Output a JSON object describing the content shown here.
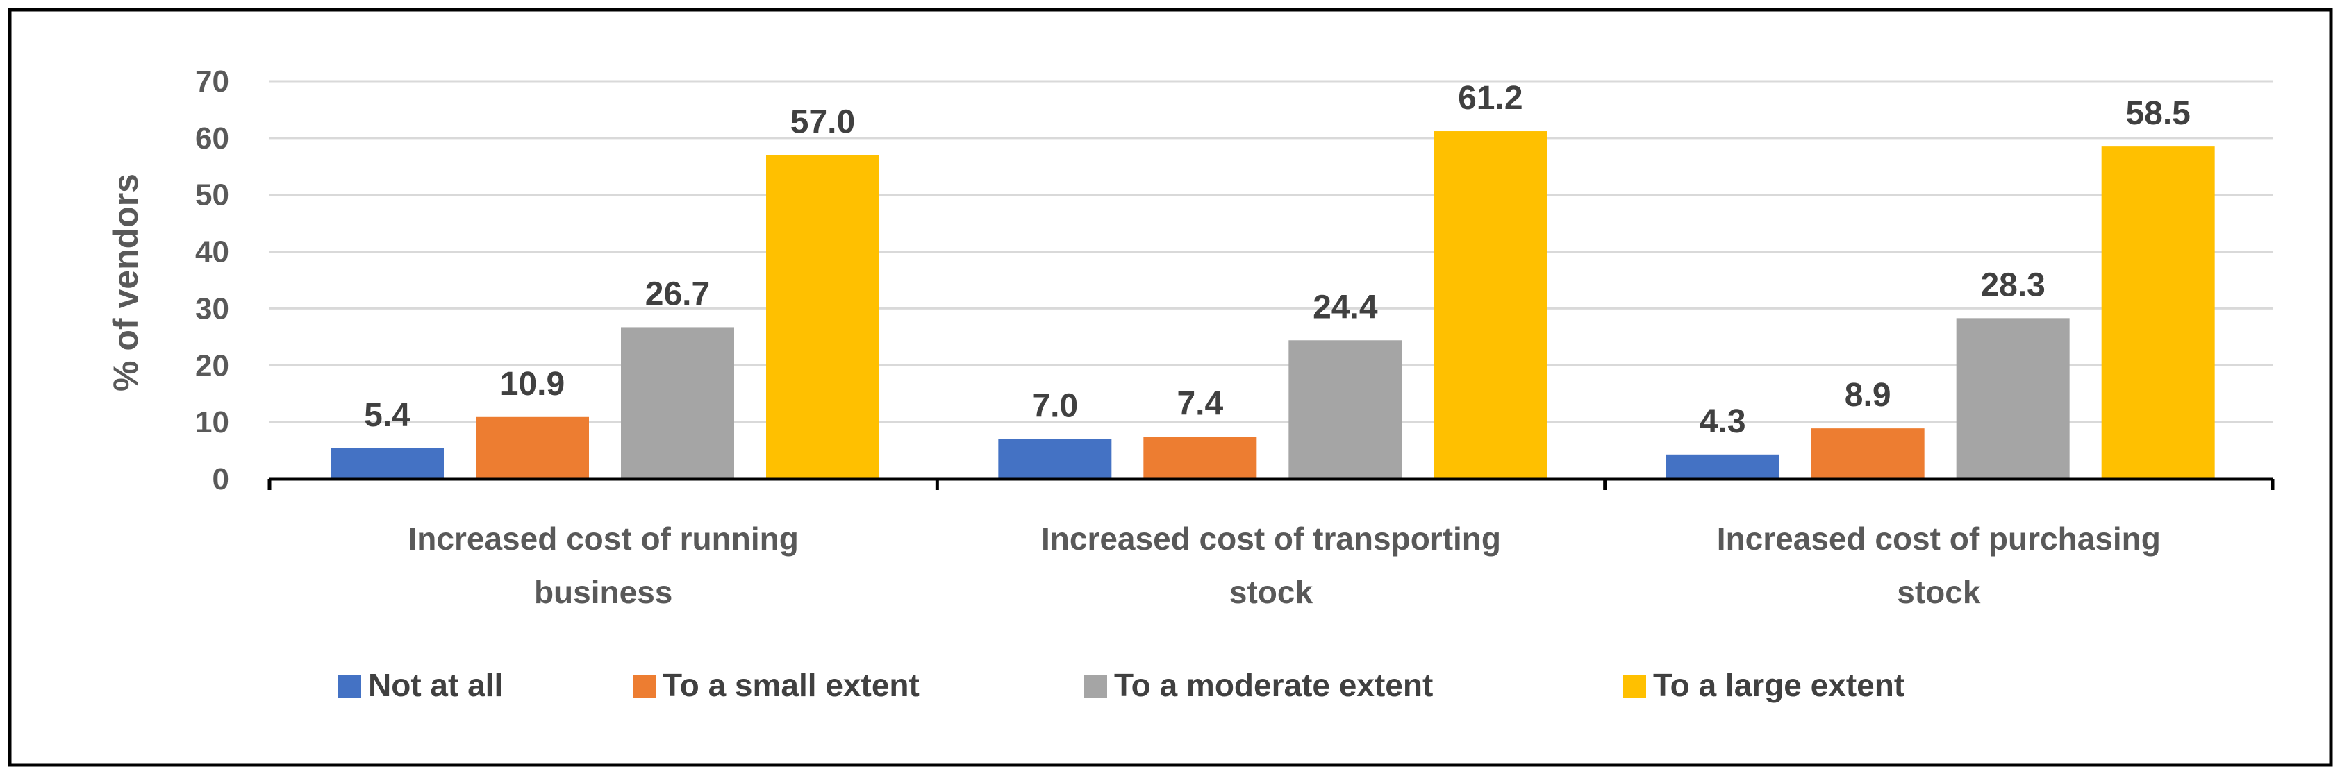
{
  "chart_data": {
    "type": "bar",
    "title": "",
    "xlabel": "",
    "ylabel": "% of vendors",
    "ylim": [
      0,
      70
    ],
    "yticks": [
      0,
      10,
      20,
      30,
      40,
      50,
      60,
      70
    ],
    "grid": true,
    "legend_position": "bottom",
    "categories": [
      [
        "Increased cost of running",
        "business"
      ],
      [
        "Increased cost of transporting",
        "stock"
      ],
      [
        "Increased cost of purchasing",
        "stock"
      ]
    ],
    "series": [
      {
        "name": "Not at all",
        "color": "#4472C4",
        "values": [
          5.4,
          7.0,
          4.3
        ],
        "labels": [
          "5.4",
          "7.0",
          "4.3"
        ]
      },
      {
        "name": "To a small extent",
        "color": "#ED7D31",
        "values": [
          10.9,
          7.4,
          8.9
        ],
        "labels": [
          "10.9",
          "7.4",
          "8.9"
        ]
      },
      {
        "name": "To a moderate extent",
        "color": "#A5A5A5",
        "values": [
          26.7,
          24.4,
          28.3
        ],
        "labels": [
          "26.7",
          "24.4",
          "28.3"
        ]
      },
      {
        "name": "To a large extent",
        "color": "#FFC000",
        "values": [
          57.0,
          61.2,
          58.5
        ],
        "labels": [
          "57.0",
          "61.2",
          "58.5"
        ]
      }
    ]
  }
}
